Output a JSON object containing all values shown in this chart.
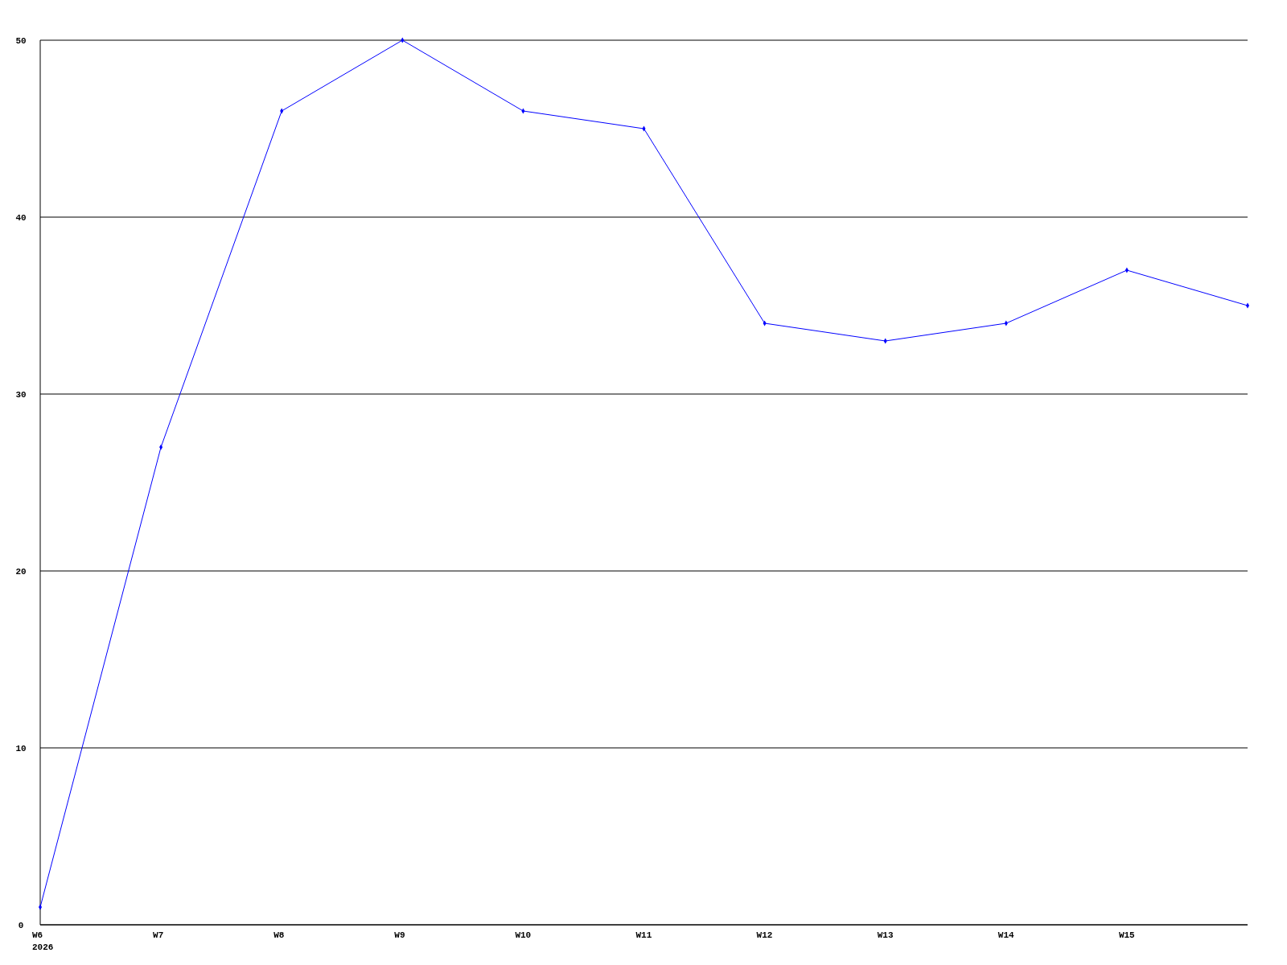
{
  "chart_data": {
    "type": "line",
    "categories": [
      "W6\n2026",
      "W7",
      "W8",
      "W9",
      "W10",
      "W11",
      "W12",
      "W13",
      "W14",
      "W15",
      null
    ],
    "series": [
      {
        "color": "#0000ff",
        "values": [
          1,
          27,
          46,
          50,
          46,
          45,
          34,
          33,
          34,
          37,
          35
        ]
      }
    ],
    "ylim": [
      0,
      50
    ],
    "yticks": [
      0,
      10,
      20,
      30,
      40,
      50
    ],
    "grid": "y",
    "marker": "diamond"
  }
}
